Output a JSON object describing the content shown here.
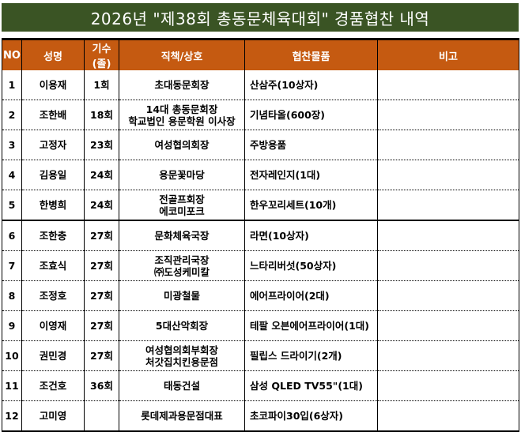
{
  "title": "2026년 \"제38회 총동문체육대회\" 경품협찬 내역",
  "colors": {
    "title_bg": "#3a5424",
    "header_bg": "#c55a11"
  },
  "headers": [
    "NO",
    "성명",
    "기수(졸)",
    "직책/상호",
    "협찬물품",
    "비고"
  ],
  "rows": [
    {
      "no": "1",
      "name": "이용재",
      "gen": "1회",
      "title1": "초대동문회장",
      "title2": "",
      "gift": "산삼주(10상자)",
      "note": ""
    },
    {
      "no": "2",
      "name": "조한배",
      "gen": "18회",
      "title1": "14대 총동문회장",
      "title2": "학교법인 용문학원 이사장",
      "gift": "기념타올(600장)",
      "note": ""
    },
    {
      "no": "3",
      "name": "고정자",
      "gen": "23회",
      "title1": "여성협의회장",
      "title2": "",
      "gift": "주방용품",
      "note": ""
    },
    {
      "no": "4",
      "name": "김용일",
      "gen": "24회",
      "title1": "용문꽃마당",
      "title2": "",
      "gift": "전자레인지(1대)",
      "note": ""
    },
    {
      "no": "5",
      "name": "한병희",
      "gen": "24회",
      "title1": "전골프회장",
      "title2": "에코미포크",
      "gift": "한우꼬리세트(10개)",
      "note": ""
    },
    {
      "no": "6",
      "name": "조한충",
      "gen": "27회",
      "title1": "문화체육국장",
      "title2": "",
      "gift": "라면(10상자)",
      "note": ""
    },
    {
      "no": "7",
      "name": "조효식",
      "gen": "27회",
      "title1": "조직관리국장",
      "title2": "㈜도성케미칼",
      "gift": "느타리버섯(50상자)",
      "note": ""
    },
    {
      "no": "8",
      "name": "조정호",
      "gen": "27회",
      "title1": "미광철물",
      "title2": "",
      "gift": "에어프라이어(2대)",
      "note": ""
    },
    {
      "no": "9",
      "name": "이영재",
      "gen": "27회",
      "title1": "5대산악회장",
      "title2": "",
      "gift": "테팔 오븐에어프라이어(1대)",
      "note": ""
    },
    {
      "no": "10",
      "name": "권민경",
      "gen": "27회",
      "title1": "여성협의회부회장",
      "title2": "처갓집치킨용문점",
      "gift": "필립스 드라이기(2개)",
      "note": ""
    },
    {
      "no": "11",
      "name": "조건호",
      "gen": "36회",
      "title1": "태동건설",
      "title2": "",
      "gift": "삼성 QLED TV55\"(1대)",
      "note": ""
    },
    {
      "no": "12",
      "name": "고미영",
      "gen": "",
      "title1": "롯데제과용문점대표",
      "title2": "",
      "gift": "초코파이30입(6상자)",
      "note": ""
    }
  ]
}
